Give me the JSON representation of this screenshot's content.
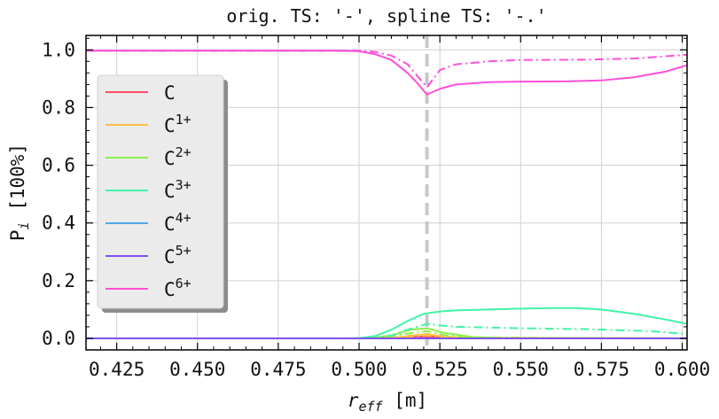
{
  "chart_data": {
    "type": "line",
    "title": "orig. TS: '-', spline TS: '-.'",
    "xlabel": "r",
    "xlabel_sub": "eff",
    "xlabel_unit": " [m]",
    "ylabel": "P",
    "ylabel_sub": "i",
    "ylabel_unit": " [100%]",
    "xlim": [
      0.4155,
      0.6015
    ],
    "ylim": [
      -0.04,
      1.05
    ],
    "xticks": [
      0.425,
      0.45,
      0.475,
      0.5,
      0.525,
      0.55,
      0.575,
      0.6
    ],
    "xtick_labels": [
      "0.425",
      "0.450",
      "0.475",
      "0.500",
      "0.525",
      "0.550",
      "0.575",
      "0.600"
    ],
    "yticks": [
      0.0,
      0.2,
      0.4,
      0.6,
      0.8,
      1.0
    ],
    "ytick_labels": [
      "0.0",
      "0.2",
      "0.4",
      "0.6",
      "0.8",
      "1.0"
    ],
    "grid": true,
    "vline": {
      "x": 0.521,
      "style": "dashed",
      "color": "#c8c8c8"
    },
    "legend_position": "center-left",
    "series": [
      {
        "name": "C",
        "sup": "",
        "color": "#ff4d6d",
        "solid": [
          [
            0.4155,
            0.0
          ],
          [
            0.505,
            0.0
          ],
          [
            0.513,
            0.002
          ],
          [
            0.519,
            0.006
          ],
          [
            0.521,
            0.008
          ],
          [
            0.524,
            0.004
          ],
          [
            0.53,
            0.001
          ],
          [
            0.6015,
            0.0
          ]
        ],
        "dashdot": [
          [
            0.4155,
            0.0
          ],
          [
            0.51,
            0.0
          ],
          [
            0.519,
            0.004
          ],
          [
            0.521,
            0.005
          ],
          [
            0.526,
            0.002
          ],
          [
            0.6015,
            0.0
          ]
        ]
      },
      {
        "name": "C",
        "sup": "1+",
        "color": "#ffc040",
        "solid": [
          [
            0.4155,
            0.0
          ],
          [
            0.505,
            0.0
          ],
          [
            0.512,
            0.004
          ],
          [
            0.518,
            0.012
          ],
          [
            0.521,
            0.015
          ],
          [
            0.525,
            0.008
          ],
          [
            0.532,
            0.002
          ],
          [
            0.6015,
            0.0
          ]
        ],
        "dashdot": [
          [
            0.4155,
            0.0
          ],
          [
            0.51,
            0.0
          ],
          [
            0.518,
            0.008
          ],
          [
            0.521,
            0.01
          ],
          [
            0.526,
            0.004
          ],
          [
            0.6015,
            0.0
          ]
        ]
      },
      {
        "name": "C",
        "sup": "2+",
        "color": "#8cf04a",
        "solid": [
          [
            0.4155,
            0.0
          ],
          [
            0.502,
            0.0
          ],
          [
            0.51,
            0.01
          ],
          [
            0.516,
            0.03
          ],
          [
            0.521,
            0.035
          ],
          [
            0.526,
            0.02
          ],
          [
            0.535,
            0.005
          ],
          [
            0.545,
            0.001
          ],
          [
            0.6015,
            0.0
          ]
        ],
        "dashdot": [
          [
            0.4155,
            0.0
          ],
          [
            0.506,
            0.0
          ],
          [
            0.514,
            0.015
          ],
          [
            0.521,
            0.025
          ],
          [
            0.527,
            0.01
          ],
          [
            0.54,
            0.002
          ],
          [
            0.6015,
            0.0
          ]
        ]
      },
      {
        "name": "C",
        "sup": "3+",
        "color": "#40f4a4",
        "solid": [
          [
            0.4155,
            0.0
          ],
          [
            0.495,
            0.0
          ],
          [
            0.5,
            0.001
          ],
          [
            0.505,
            0.008
          ],
          [
            0.51,
            0.03
          ],
          [
            0.515,
            0.06
          ],
          [
            0.52,
            0.085
          ],
          [
            0.525,
            0.093
          ],
          [
            0.53,
            0.097
          ],
          [
            0.54,
            0.1
          ],
          [
            0.55,
            0.103
          ],
          [
            0.56,
            0.105
          ],
          [
            0.567,
            0.105
          ],
          [
            0.575,
            0.1
          ],
          [
            0.585,
            0.085
          ],
          [
            0.595,
            0.065
          ],
          [
            0.6015,
            0.05
          ]
        ],
        "dashdot": [
          [
            0.4155,
            0.0
          ],
          [
            0.505,
            0.0
          ],
          [
            0.51,
            0.01
          ],
          [
            0.515,
            0.03
          ],
          [
            0.521,
            0.05
          ],
          [
            0.525,
            0.045
          ],
          [
            0.53,
            0.04
          ],
          [
            0.55,
            0.035
          ],
          [
            0.57,
            0.032
          ],
          [
            0.59,
            0.025
          ],
          [
            0.6015,
            0.015
          ]
        ]
      },
      {
        "name": "C",
        "sup": "4+",
        "color": "#4ea8e8",
        "solid": [
          [
            0.4155,
            0.0
          ],
          [
            0.6015,
            0.0
          ]
        ],
        "dashdot": [
          [
            0.4155,
            0.0
          ],
          [
            0.6015,
            0.0
          ]
        ]
      },
      {
        "name": "C",
        "sup": "5+",
        "color": "#8050f0",
        "solid": [
          [
            0.4155,
            0.0
          ],
          [
            0.6015,
            0.0
          ]
        ],
        "dashdot": [
          [
            0.4155,
            0.0
          ],
          [
            0.6015,
            0.0
          ]
        ]
      },
      {
        "name": "C",
        "sup": "6+",
        "color": "#ff4fd8",
        "solid": [
          [
            0.4155,
            0.997
          ],
          [
            0.48,
            0.997
          ],
          [
            0.495,
            0.997
          ],
          [
            0.5,
            0.995
          ],
          [
            0.505,
            0.985
          ],
          [
            0.51,
            0.965
          ],
          [
            0.515,
            0.92
          ],
          [
            0.518,
            0.885
          ],
          [
            0.521,
            0.845
          ],
          [
            0.525,
            0.865
          ],
          [
            0.53,
            0.88
          ],
          [
            0.54,
            0.888
          ],
          [
            0.55,
            0.89
          ],
          [
            0.565,
            0.891
          ],
          [
            0.575,
            0.894
          ],
          [
            0.585,
            0.905
          ],
          [
            0.595,
            0.925
          ],
          [
            0.6015,
            0.947
          ]
        ],
        "dashdot": [
          [
            0.4155,
            0.997
          ],
          [
            0.5,
            0.997
          ],
          [
            0.505,
            0.993
          ],
          [
            0.51,
            0.98
          ],
          [
            0.515,
            0.95
          ],
          [
            0.518,
            0.91
          ],
          [
            0.521,
            0.87
          ],
          [
            0.525,
            0.93
          ],
          [
            0.53,
            0.95
          ],
          [
            0.54,
            0.96
          ],
          [
            0.55,
            0.965
          ],
          [
            0.57,
            0.966
          ],
          [
            0.585,
            0.97
          ],
          [
            0.6015,
            0.983
          ]
        ]
      }
    ]
  }
}
